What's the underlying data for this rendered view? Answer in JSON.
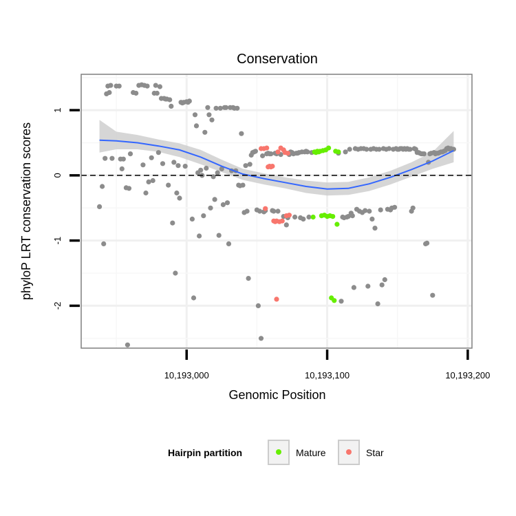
{
  "chart_data": {
    "type": "scatter",
    "title": "Conservation",
    "xlabel": "Genomic Position",
    "ylabel": "phyloP LRT conservation scores",
    "xlim": [
      10192925,
      10193203
    ],
    "ylim": [
      -2.65,
      1.55
    ],
    "x_ticks": [
      {
        "value": 10193000,
        "label": "10,193,000"
      },
      {
        "value": 10193100,
        "label": "10,193,100"
      },
      {
        "value": 10193200,
        "label": "10,193,200"
      }
    ],
    "y_ticks": [
      {
        "value": 1,
        "label": "1"
      },
      {
        "value": 0,
        "label": "0"
      },
      {
        "value": -1,
        "label": "-1"
      },
      {
        "value": -2,
        "label": "-2"
      }
    ],
    "reference_line": {
      "y": 0,
      "style": "dashed"
    },
    "legend": {
      "title": "Hairpin partition",
      "placement": "bottom",
      "entries": [
        {
          "label": "Mature",
          "color": "#66ee00"
        },
        {
          "label": "Star",
          "color": "#f8766d"
        }
      ]
    },
    "colors": {
      "other": "#8c8c8c",
      "mature": "#66ee00",
      "star": "#f8766d",
      "smooth": "#3366ff",
      "ribbon": "#cccccc"
    },
    "smooth": {
      "x": [
        10192938,
        10192950,
        10192965,
        10192980,
        10192995,
        10193010,
        10193025,
        10193040,
        10193055,
        10193070,
        10193085,
        10193100,
        10193115,
        10193130,
        10193145,
        10193160,
        10193175,
        10193190
      ],
      "y": [
        0.54,
        0.53,
        0.5,
        0.45,
        0.39,
        0.28,
        0.14,
        0.02,
        -0.05,
        -0.11,
        -0.17,
        -0.21,
        -0.2,
        -0.13,
        -0.03,
        0.09,
        0.22,
        0.38
      ],
      "ymin": [
        0.35,
        0.4,
        0.4,
        0.36,
        0.28,
        0.17,
        0.05,
        -0.07,
        -0.14,
        -0.2,
        -0.27,
        -0.31,
        -0.3,
        -0.24,
        -0.14,
        -0.02,
        0.1,
        0.2
      ],
      "ymax": [
        0.85,
        0.67,
        0.62,
        0.55,
        0.49,
        0.39,
        0.24,
        0.1,
        0.03,
        -0.03,
        -0.08,
        -0.11,
        -0.1,
        -0.03,
        0.07,
        0.2,
        0.36,
        0.68
      ]
    },
    "series": [
      {
        "name": "Other",
        "points": [
          [
            10192938,
            -0.48
          ],
          [
            10192940,
            -0.17
          ],
          [
            10192941,
            -1.05
          ],
          [
            10192942,
            0.26
          ],
          [
            10192943,
            1.25
          ],
          [
            10192944,
            1.37
          ],
          [
            10192945,
            1.27
          ],
          [
            10192946,
            1.38
          ],
          [
            10192947,
            0.26
          ],
          [
            10192950,
            1.37
          ],
          [
            10192952,
            1.37
          ],
          [
            10192953,
            0.25
          ],
          [
            10192954,
            0.1
          ],
          [
            10192955,
            0.25
          ],
          [
            10192957,
            -0.19
          ],
          [
            10192958,
            -2.6
          ],
          [
            10192959,
            -0.2
          ],
          [
            10192960,
            0.33
          ],
          [
            10192962,
            1.27
          ],
          [
            10192964,
            1.26
          ],
          [
            10192966,
            1.38
          ],
          [
            10192968,
            1.39
          ],
          [
            10192969,
            0.16
          ],
          [
            10192970,
            1.38
          ],
          [
            10192971,
            -0.27
          ],
          [
            10192972,
            1.37
          ],
          [
            10192973,
            -0.1
          ],
          [
            10192975,
            0.27
          ],
          [
            10192976,
            -0.08
          ],
          [
            10192977,
            1.26
          ],
          [
            10192978,
            1.38
          ],
          [
            10192979,
            1.26
          ],
          [
            10192980,
            0.35
          ],
          [
            10192981,
            1.36
          ],
          [
            10192982,
            1.18
          ],
          [
            10192983,
            0.18
          ],
          [
            10192984,
            1.18
          ],
          [
            10192985,
            1.17
          ],
          [
            10192986,
            1.17
          ],
          [
            10192987,
            -0.15
          ],
          [
            10192988,
            1.16
          ],
          [
            10192989,
            1.06
          ],
          [
            10192990,
            -0.73
          ],
          [
            10192991,
            0.2
          ],
          [
            10192992,
            -1.5
          ],
          [
            10192993,
            -0.27
          ],
          [
            10192994,
            0.15
          ],
          [
            10192995,
            -0.35
          ],
          [
            10192996,
            1.12
          ],
          [
            10192997,
            1.11
          ],
          [
            10192998,
            1.12
          ],
          [
            10192999,
            0.14
          ],
          [
            10193000,
            1.13
          ],
          [
            10193001,
            1.12
          ],
          [
            10193002,
            1.14
          ],
          [
            10193004,
            -0.67
          ],
          [
            10193005,
            -1.88
          ],
          [
            10193006,
            0.93
          ],
          [
            10193007,
            0.76
          ],
          [
            10193008,
            0.04
          ],
          [
            10193009,
            -0.93
          ],
          [
            10193010,
            0.08
          ],
          [
            10193011,
            0.0
          ],
          [
            10193012,
            -0.62
          ],
          [
            10193013,
            0.66
          ],
          [
            10193014,
            0.11
          ],
          [
            10193015,
            1.04
          ],
          [
            10193016,
            0.93
          ],
          [
            10193017,
            -0.5
          ],
          [
            10193018,
            0.85
          ],
          [
            10193019,
            -0.02
          ],
          [
            10193020,
            -0.37
          ],
          [
            10193021,
            1.03
          ],
          [
            10193022,
            0.04
          ],
          [
            10193023,
            -0.92
          ],
          [
            10193024,
            1.03
          ],
          [
            10193025,
            0.1
          ],
          [
            10193026,
            -0.45
          ],
          [
            10193027,
            1.04
          ],
          [
            10193028,
            1.04
          ],
          [
            10193029,
            -0.42
          ],
          [
            10193030,
            -1.05
          ],
          [
            10193031,
            1.04
          ],
          [
            10193032,
            0.07
          ],
          [
            10193033,
            1.04
          ],
          [
            10193034,
            1.03
          ],
          [
            10193035,
            0.07
          ],
          [
            10193036,
            1.03
          ],
          [
            10193037,
            -0.15
          ],
          [
            10193038,
            -0.16
          ],
          [
            10193039,
            0.64
          ],
          [
            10193040,
            -0.15
          ],
          [
            10193041,
            -0.57
          ],
          [
            10193042,
            0.15
          ],
          [
            10193043,
            -0.55
          ],
          [
            10193044,
            -1.58
          ],
          [
            10193045,
            0.17
          ],
          [
            10193046,
            0.31
          ],
          [
            10193047,
            0.35
          ],
          [
            10193048,
            0.36
          ],
          [
            10193049,
            0.37
          ],
          [
            10193050,
            -0.53
          ],
          [
            10193051,
            -2.0
          ],
          [
            10193052,
            -0.55
          ],
          [
            10193053,
            -2.5
          ],
          [
            10193054,
            0.3
          ],
          [
            10193055,
            -0.56
          ],
          [
            10193056,
            -0.54
          ],
          [
            10193057,
            0.33
          ],
          [
            10193058,
            0.34
          ],
          [
            10193059,
            0.33
          ],
          [
            10193060,
            0.33
          ],
          [
            10193061,
            -0.54
          ],
          [
            10193062,
            -0.55
          ],
          [
            10193063,
            0.34
          ],
          [
            10193064,
            0.33
          ],
          [
            10193065,
            -0.55
          ],
          [
            10193067,
            0.32
          ],
          [
            10193069,
            -0.63
          ],
          [
            10193071,
            -0.76
          ],
          [
            10193072,
            -0.65
          ],
          [
            10193073,
            0.32
          ],
          [
            10193074,
            0.36
          ],
          [
            10193075,
            0.35
          ],
          [
            10193076,
            0.33
          ],
          [
            10193077,
            -0.64
          ],
          [
            10193078,
            0.34
          ],
          [
            10193079,
            0.34
          ],
          [
            10193080,
            0.35
          ],
          [
            10193081,
            -0.65
          ],
          [
            10193082,
            0.36
          ],
          [
            10193083,
            -0.67
          ],
          [
            10193084,
            0.36
          ],
          [
            10193085,
            0.37
          ],
          [
            10193086,
            0.36
          ],
          [
            10193087,
            -0.64
          ],
          [
            10193089,
            0.35
          ],
          [
            10193108,
            0.34
          ],
          [
            10193110,
            -1.93
          ],
          [
            10193111,
            -0.64
          ],
          [
            10193112,
            -0.65
          ],
          [
            10193113,
            0.36
          ],
          [
            10193114,
            -0.64
          ],
          [
            10193115,
            -0.63
          ],
          [
            10193116,
            0.4
          ],
          [
            10193117,
            -0.58
          ],
          [
            10193118,
            -0.62
          ],
          [
            10193119,
            -1.72
          ],
          [
            10193120,
            0.41
          ],
          [
            10193121,
            -0.52
          ],
          [
            10193122,
            0.4
          ],
          [
            10193123,
            -0.55
          ],
          [
            10193124,
            0.41
          ],
          [
            10193125,
            -0.57
          ],
          [
            10193126,
            0.41
          ],
          [
            10193127,
            -0.54
          ],
          [
            10193128,
            0.4
          ],
          [
            10193129,
            -1.7
          ],
          [
            10193130,
            -0.55
          ],
          [
            10193131,
            0.4
          ],
          [
            10193132,
            -0.67
          ],
          [
            10193133,
            0.41
          ],
          [
            10193134,
            -0.81
          ],
          [
            10193135,
            0.4
          ],
          [
            10193136,
            -1.97
          ],
          [
            10193137,
            0.4
          ],
          [
            10193138,
            -0.53
          ],
          [
            10193139,
            -1.68
          ],
          [
            10193140,
            0.41
          ],
          [
            10193141,
            -1.6
          ],
          [
            10193142,
            0.4
          ],
          [
            10193143,
            -0.52
          ],
          [
            10193144,
            0.41
          ],
          [
            10193145,
            -0.53
          ],
          [
            10193146,
            -0.5
          ],
          [
            10193147,
            0.4
          ],
          [
            10193148,
            -0.49
          ],
          [
            10193149,
            0.41
          ],
          [
            10193150,
            0.4
          ],
          [
            10193151,
            0.4
          ],
          [
            10193152,
            0.41
          ],
          [
            10193153,
            0.41
          ],
          [
            10193154,
            0.4
          ],
          [
            10193155,
            0.41
          ],
          [
            10193156,
            0.4
          ],
          [
            10193157,
            0.41
          ],
          [
            10193158,
            0.4
          ],
          [
            10193159,
            0.4
          ],
          [
            10193160,
            -0.55
          ],
          [
            10193161,
            -0.5
          ],
          [
            10193162,
            0.41
          ],
          [
            10193163,
            0.4
          ],
          [
            10193164,
            0.35
          ],
          [
            10193165,
            0.35
          ],
          [
            10193166,
            0.34
          ],
          [
            10193167,
            0.33
          ],
          [
            10193168,
            0.33
          ],
          [
            10193169,
            0.33
          ],
          [
            10193170,
            -1.05
          ],
          [
            10193171,
            -1.04
          ],
          [
            10193172,
            0.2
          ],
          [
            10193173,
            0.33
          ],
          [
            10193174,
            0.34
          ],
          [
            10193175,
            -1.84
          ],
          [
            10193176,
            0.35
          ],
          [
            10193177,
            0.33
          ],
          [
            10193178,
            0.34
          ],
          [
            10193179,
            0.34
          ],
          [
            10193180,
            0.35
          ],
          [
            10193181,
            0.36
          ],
          [
            10193182,
            0.36
          ],
          [
            10193183,
            0.37
          ],
          [
            10193184,
            0.38
          ],
          [
            10193185,
            0.41
          ],
          [
            10193186,
            0.42
          ],
          [
            10193187,
            0.4
          ],
          [
            10193188,
            0.41
          ],
          [
            10193189,
            0.4
          ],
          [
            10193190,
            0.4
          ]
        ]
      },
      {
        "name": "Mature",
        "points": [
          [
            10193090,
            -0.64
          ],
          [
            10193091,
            0.36
          ],
          [
            10193092,
            0.35
          ],
          [
            10193093,
            0.37
          ],
          [
            10193094,
            0.36
          ],
          [
            10193095,
            0.37
          ],
          [
            10193096,
            -0.62
          ],
          [
            10193097,
            0.38
          ],
          [
            10193098,
            -0.61
          ],
          [
            10193099,
            0.39
          ],
          [
            10193100,
            -0.63
          ],
          [
            10193101,
            0.42
          ],
          [
            10193102,
            -0.62
          ],
          [
            10193103,
            -1.88
          ],
          [
            10193104,
            -0.63
          ],
          [
            10193105,
            -1.92
          ],
          [
            10193106,
            0.37
          ],
          [
            10193107,
            -0.75
          ],
          [
            10193108,
            0.36
          ]
        ]
      },
      {
        "name": "Star",
        "points": [
          [
            10193053,
            0.41
          ],
          [
            10193055,
            0.41
          ],
          [
            10193056,
            -0.51
          ],
          [
            10193057,
            0.42
          ],
          [
            10193058,
            0.13
          ],
          [
            10193059,
            0.14
          ],
          [
            10193060,
            0.13
          ],
          [
            10193061,
            0.14
          ],
          [
            10193062,
            -0.7
          ],
          [
            10193063,
            -0.71
          ],
          [
            10193064,
            -0.7
          ],
          [
            10193064,
            -1.9
          ],
          [
            10193065,
            0.36
          ],
          [
            10193066,
            -0.71
          ],
          [
            10193067,
            0.42
          ],
          [
            10193068,
            -0.7
          ],
          [
            10193069,
            0.39
          ],
          [
            10193070,
            0.35
          ],
          [
            10193071,
            -0.62
          ],
          [
            10193072,
            0.34
          ],
          [
            10193073,
            -0.61
          ]
        ]
      }
    ]
  }
}
